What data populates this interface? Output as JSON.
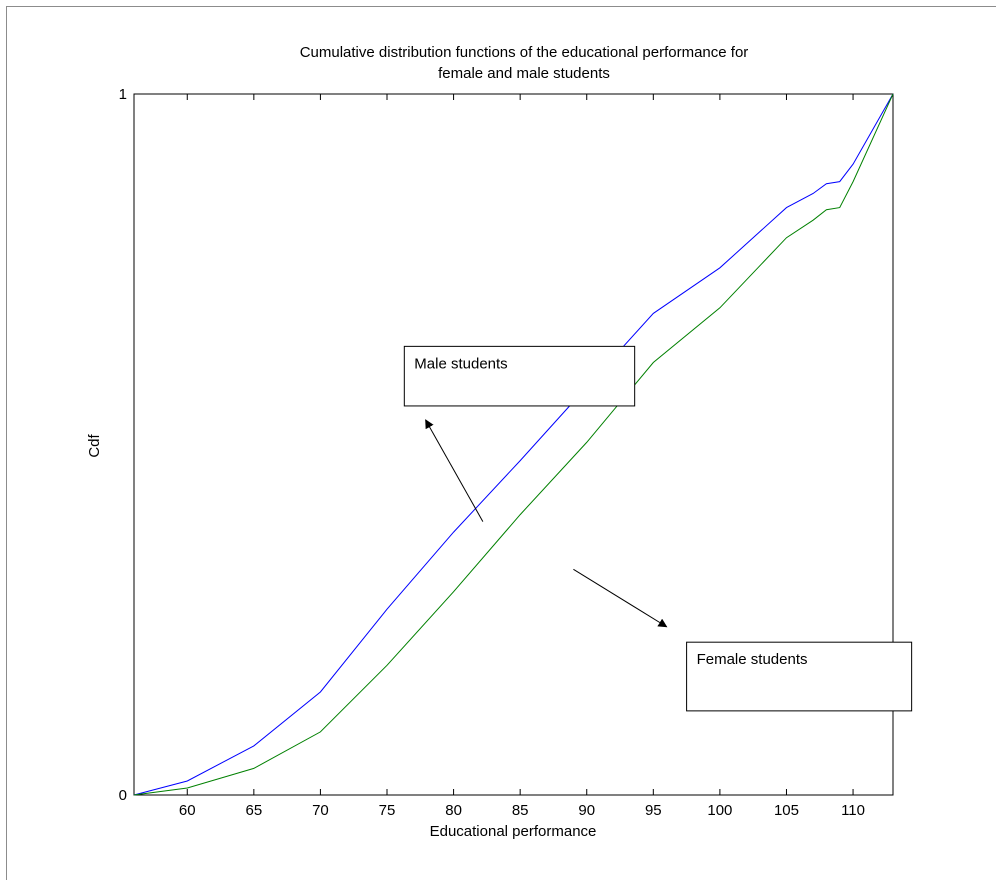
{
  "chart_data": {
    "type": "line",
    "title": "Cumulative distribution functions of the educational performance for female and male students",
    "title_lines": [
      "Cumulative distribution functions of the educational performance for",
      "female and male students"
    ],
    "xlabel": "Educational performance",
    "ylabel": "Cdf",
    "xlim": [
      56,
      113
    ],
    "ylim": [
      0,
      1
    ],
    "x_ticks": [
      60,
      65,
      70,
      75,
      80,
      85,
      90,
      95,
      100,
      105,
      110
    ],
    "y_ticks": [
      0,
      1
    ],
    "grid": false,
    "legend": "none",
    "series": [
      {
        "name": "Male students",
        "color": "#0000ff",
        "x": [
          56,
          60,
          65,
          70,
          75,
          80,
          85,
          90,
          95,
          100,
          105,
          107,
          108,
          109,
          110,
          113
        ],
        "y": [
          0,
          0.02,
          0.07,
          0.147,
          0.265,
          0.375,
          0.477,
          0.582,
          0.687,
          0.752,
          0.838,
          0.858,
          0.872,
          0.875,
          0.9,
          1.0
        ]
      },
      {
        "name": "Female students",
        "color": "#008000",
        "x": [
          56,
          60,
          65,
          70,
          75,
          80,
          85,
          90,
          95,
          100,
          105,
          107,
          108,
          109,
          110,
          113
        ],
        "y": [
          0,
          0.01,
          0.038,
          0.09,
          0.185,
          0.29,
          0.4,
          0.503,
          0.617,
          0.695,
          0.795,
          0.82,
          0.835,
          0.838,
          0.875,
          1.0
        ]
      }
    ],
    "annotations": [
      {
        "text": "Male students",
        "box": {
          "x0": 76.3,
          "x1": 93.6,
          "y0": 0.555,
          "y1": 0.64
        },
        "arrow": {
          "from": [
            82.2,
            0.39
          ],
          "to": [
            77.9,
            0.535
          ]
        }
      },
      {
        "text": "Female students",
        "box": {
          "x0": 97.5,
          "x1": 114.4,
          "y0": 0.12,
          "y1": 0.218
        },
        "arrow": {
          "from": [
            89.0,
            0.322
          ],
          "to": [
            96.0,
            0.24
          ]
        }
      }
    ]
  }
}
